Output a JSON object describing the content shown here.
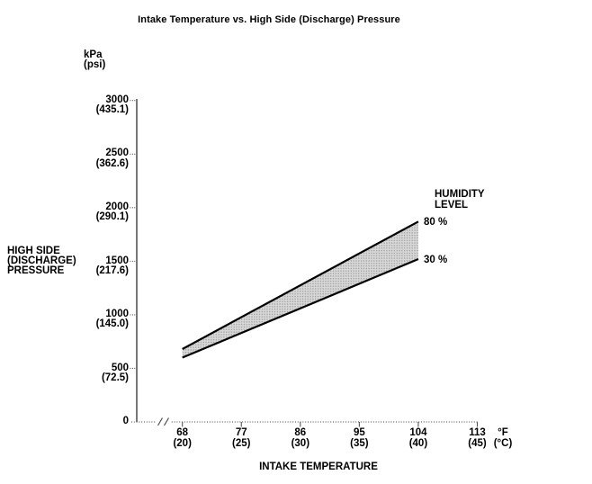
{
  "title": "Intake Temperature vs. High Side (Discharge) Pressure",
  "y_axis": {
    "unit_primary": "kPa",
    "unit_secondary": "(psi)",
    "axis_title_lines": [
      "HIGH SIDE",
      "(DISCHARGE)",
      "PRESSURE"
    ]
  },
  "x_axis": {
    "axis_title": "INTAKE TEMPERATURE",
    "unit_primary": "°F",
    "unit_secondary": "(°C)"
  },
  "annotations": {
    "legend_title_line1": "HUMIDITY",
    "legend_title_line2": "LEVEL",
    "line_high_label": "80 %",
    "line_low_label": "30 %"
  },
  "colors": {
    "line": "#000000",
    "text": "#000000",
    "band_fill": "#d9d9d9",
    "band_dot": "#9e9e9e",
    "background": "#ffffff"
  },
  "chart_data": {
    "type": "area",
    "title": "Intake Temperature vs. High Side (Discharge) Pressure",
    "xlabel": "INTAKE TEMPERATURE",
    "ylabel": "HIGH SIDE (DISCHARGE) PRESSURE",
    "x_units": [
      "°F",
      "(°C)"
    ],
    "y_units": [
      "kPa",
      "(psi)"
    ],
    "x_ticks_f": [
      68,
      77,
      86,
      95,
      104,
      113
    ],
    "x_ticks_c": [
      20,
      25,
      30,
      35,
      40,
      45
    ],
    "y_ticks_kpa": [
      0,
      500,
      1000,
      1500,
      2000,
      2500,
      3000
    ],
    "y_ticks_psi": [
      0,
      72.5,
      145.0,
      217.6,
      290.1,
      362.6,
      435.1
    ],
    "xlim_f": [
      68,
      113
    ],
    "ylim_kpa": [
      0,
      3000
    ],
    "axis_break_before_first_x_tick": true,
    "legend_title": "HUMIDITY LEVEL",
    "series": [
      {
        "name": "80 %",
        "x_f": [
          68,
          104
        ],
        "y_kpa": [
          680,
          1870
        ]
      },
      {
        "name": "30 %",
        "x_f": [
          68,
          104
        ],
        "y_kpa": [
          600,
          1520
        ]
      }
    ],
    "band_between_series": true
  }
}
